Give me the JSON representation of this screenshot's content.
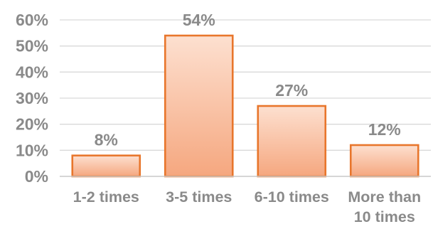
{
  "chart_data": {
    "type": "bar",
    "categories": [
      [
        "1-2 times"
      ],
      [
        "3-5 times"
      ],
      [
        "6-10 times"
      ],
      [
        "More than",
        "10 times"
      ]
    ],
    "values": [
      8,
      54,
      27,
      12
    ],
    "data_labels": [
      "8%",
      "54%",
      "27%",
      "12%"
    ],
    "y_ticks": [
      0,
      10,
      20,
      30,
      40,
      50,
      60
    ],
    "y_tick_labels": [
      "0%",
      "10%",
      "20%",
      "30%",
      "40%",
      "50%",
      "60%"
    ],
    "ylim": [
      0,
      60
    ],
    "grid": true,
    "title": "",
    "xlabel": "",
    "ylabel": "",
    "colors": {
      "bar_fill_top": "#fde0d0",
      "bar_fill_bottom": "#f5a77f",
      "bar_border": "#e8762c",
      "text": "#8a8a8a",
      "grid": "#d9d9d9"
    }
  }
}
